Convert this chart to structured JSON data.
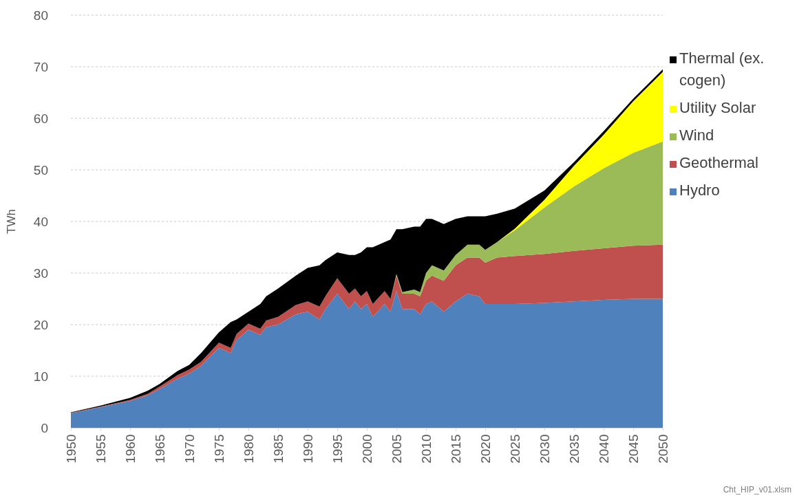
{
  "chart_data": {
    "type": "area",
    "stacked": true,
    "ylabel": "TWh",
    "annotations": [
      "Cht_HIP_v01.xlsm"
    ],
    "x": [
      1950,
      1955,
      1960,
      1963,
      1965,
      1968,
      1970,
      1972,
      1975,
      1977,
      1978,
      1980,
      1982,
      1983,
      1985,
      1988,
      1990,
      1992,
      1993,
      1995,
      1997,
      1998,
      1999,
      2000,
      2001,
      2003,
      2004,
      2005,
      2006,
      2008,
      2009,
      2010,
      2011,
      2013,
      2015,
      2017,
      2019,
      2020,
      2022,
      2025,
      2030,
      2035,
      2040,
      2045,
      2050
    ],
    "series": [
      {
        "name": "Hydro",
        "color": "#4f81bd",
        "values": [
          2.8,
          4.0,
          5.2,
          6.3,
          7.5,
          9.5,
          10.5,
          12.0,
          15.5,
          14.5,
          17.0,
          19.0,
          18.0,
          19.5,
          20.0,
          22.0,
          22.5,
          21.0,
          23.0,
          26.0,
          23.0,
          24.5,
          23.0,
          24.0,
          21.5,
          24.0,
          22.5,
          26.5,
          23.0,
          23.0,
          22.0,
          24.0,
          24.5,
          22.5,
          24.5,
          26.0,
          25.5,
          24.0,
          24.0,
          24.0,
          24.2,
          24.5,
          24.8,
          25.0,
          25.0
        ]
      },
      {
        "name": "Geothermal",
        "color": "#c0504d",
        "values": [
          0.1,
          0.1,
          0.2,
          0.3,
          0.5,
          0.7,
          0.8,
          0.8,
          1.0,
          1.0,
          1.2,
          1.2,
          1.2,
          1.3,
          1.5,
          1.8,
          2.0,
          2.5,
          2.5,
          3.0,
          3.0,
          2.5,
          2.5,
          2.5,
          2.5,
          2.5,
          2.5,
          3.0,
          3.0,
          3.0,
          3.5,
          4.5,
          5.0,
          6.0,
          7.0,
          7.0,
          7.5,
          8.0,
          9.0,
          9.3,
          9.5,
          9.8,
          10.0,
          10.3,
          10.5
        ]
      },
      {
        "name": "Wind",
        "color": "#9bbb59",
        "values": [
          0,
          0,
          0,
          0,
          0,
          0,
          0,
          0,
          0,
          0,
          0,
          0,
          0,
          0,
          0,
          0,
          0,
          0,
          0,
          0,
          0,
          0,
          0,
          0,
          0,
          0,
          0,
          0.3,
          0.3,
          0.8,
          0.8,
          1.5,
          2.0,
          2.0,
          2.0,
          2.5,
          2.5,
          2.5,
          3.0,
          5.0,
          9.0,
          12.5,
          15.5,
          18.0,
          20.0
        ]
      },
      {
        "name": "Utility Solar",
        "color": "#ffff00",
        "values": [
          0,
          0,
          0,
          0,
          0,
          0,
          0,
          0,
          0,
          0,
          0,
          0,
          0,
          0,
          0,
          0,
          0,
          0,
          0,
          0,
          0,
          0,
          0,
          0,
          0,
          0,
          0,
          0,
          0,
          0,
          0,
          0,
          0,
          0,
          0,
          0,
          0,
          0,
          0,
          0.3,
          1.5,
          4.0,
          6.5,
          10.0,
          13.5
        ]
      },
      {
        "name": "Thermal (ex. cogen)",
        "color": "#000000",
        "values": [
          0.1,
          0.2,
          0.4,
          0.6,
          0.5,
          0.8,
          0.9,
          1.7,
          2.0,
          5.0,
          2.8,
          2.3,
          4.8,
          4.7,
          5.5,
          5.7,
          6.5,
          8.0,
          7.0,
          5.0,
          7.5,
          6.5,
          8.5,
          8.5,
          11.0,
          9.5,
          11.5,
          8.7,
          12.2,
          12.2,
          12.7,
          10.5,
          9.0,
          9.0,
          7.0,
          5.5,
          5.5,
          6.5,
          5.5,
          3.9,
          1.8,
          0.7,
          0.7,
          0.5,
          0.5
        ]
      }
    ],
    "xlim": [
      1950,
      2050
    ],
    "xticks": [
      1950,
      1955,
      1960,
      1965,
      1970,
      1975,
      1980,
      1985,
      1990,
      1995,
      2000,
      2005,
      2010,
      2015,
      2020,
      2025,
      2030,
      2035,
      2040,
      2045,
      2050
    ],
    "ylim": [
      0,
      80
    ],
    "yticks": [
      0,
      10,
      20,
      30,
      40,
      50,
      60,
      70,
      80
    ],
    "grid": "y",
    "legend": "right"
  }
}
